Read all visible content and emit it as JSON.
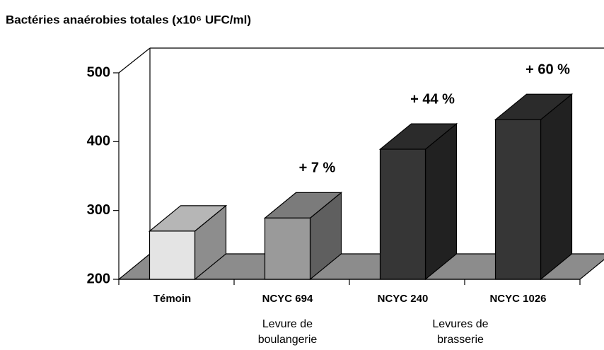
{
  "chart_data": {
    "type": "bar3d",
    "title": "Bactéries anaérobies totales (x10⁶ UFC/ml)",
    "categories": [
      "Témoin",
      "NCYC 694",
      "NCYC 240",
      "NCYC 1026"
    ],
    "values": [
      270,
      289,
      389,
      432
    ],
    "colors": [
      "#e4e4e4",
      "#9a9a9a",
      "#363636",
      "#363636"
    ],
    "annotations": [
      null,
      "+ 7 %",
      "+ 44 %",
      "+ 60 %"
    ],
    "groups": [
      {
        "lines": [
          "Levure de",
          "boulangerie"
        ],
        "categories": [
          "NCYC 694"
        ]
      },
      {
        "lines": [
          "Levures de",
          "brasserie"
        ],
        "categories": [
          "NCYC 240",
          "NCYC 1026"
        ]
      }
    ],
    "ylim": [
      200,
      500
    ],
    "yticks": [
      200,
      300,
      400,
      500
    ]
  }
}
